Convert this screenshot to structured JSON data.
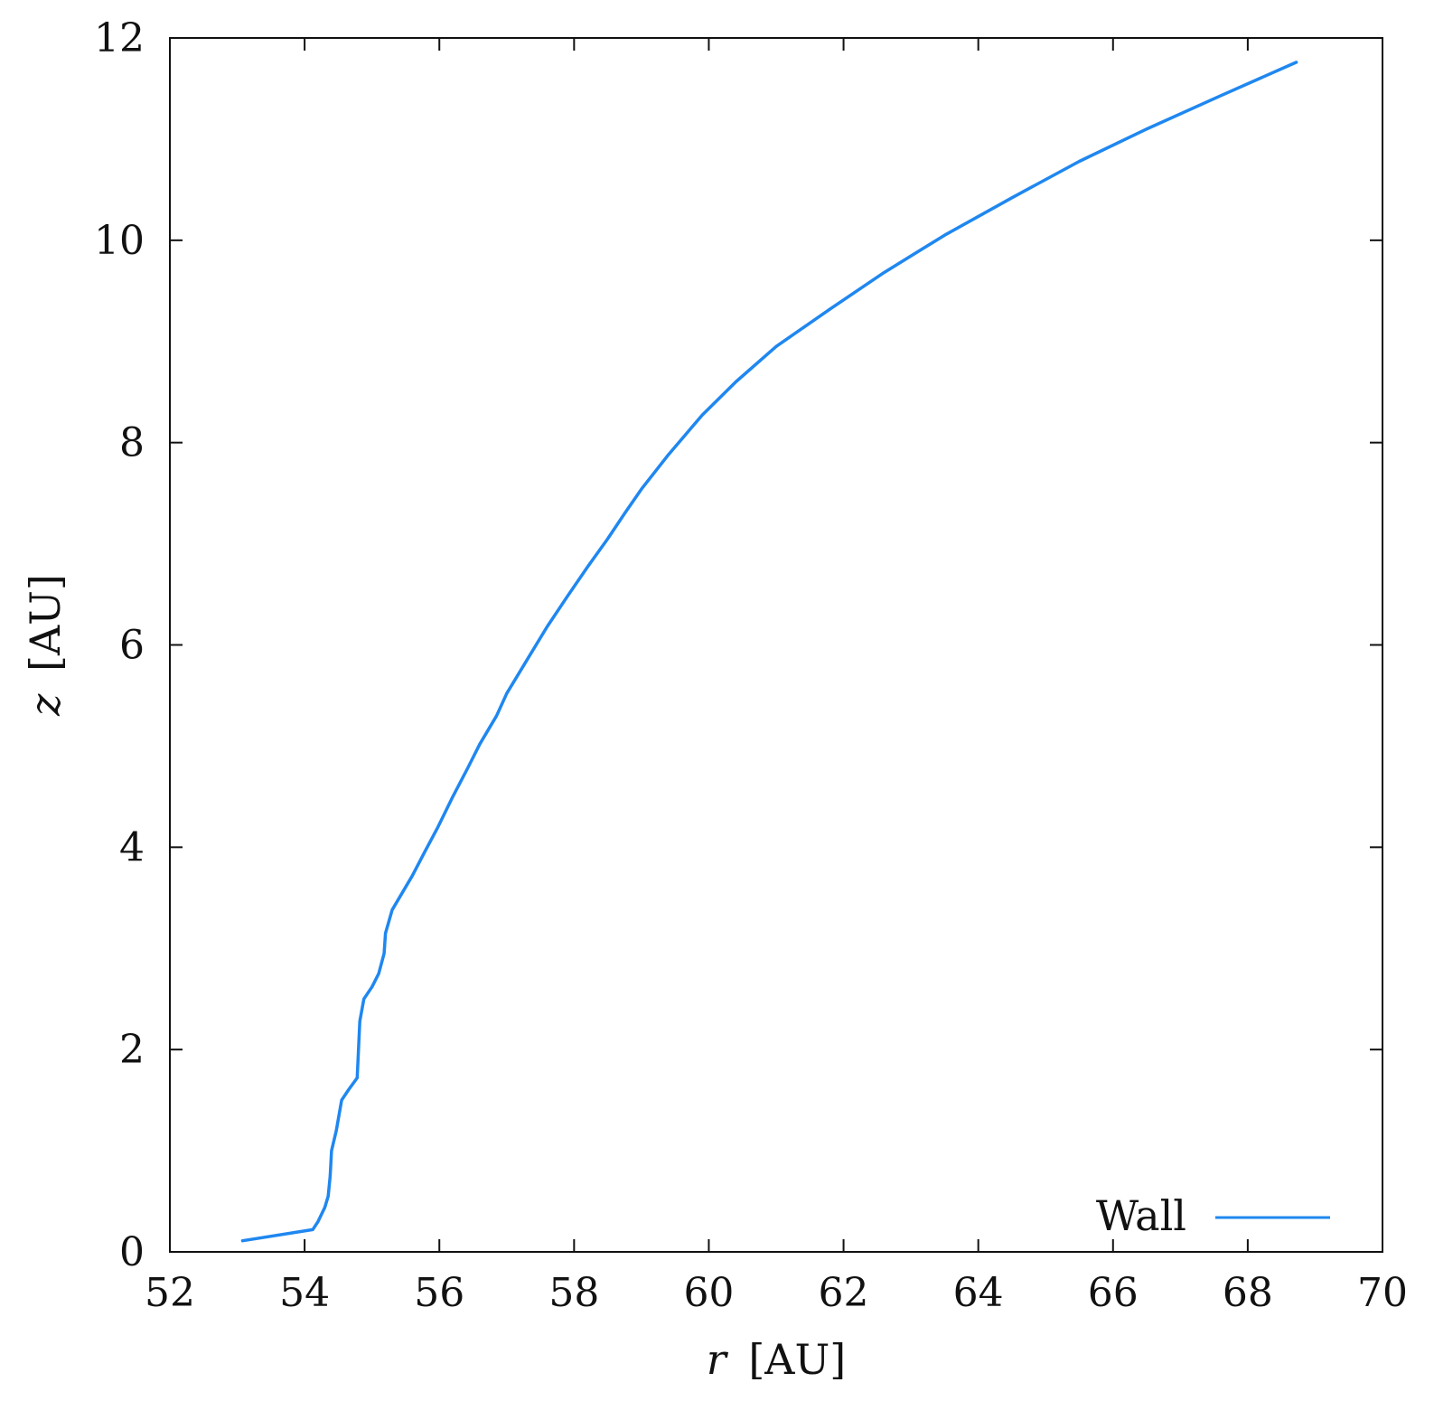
{
  "chart_data": {
    "type": "line",
    "xlabel_var": "r",
    "xlabel_unit": "[AU]",
    "ylabel_var": "z",
    "ylabel_unit": "[AU]",
    "xlim": [
      52,
      70
    ],
    "ylim": [
      0,
      12
    ],
    "xticks": [
      52,
      54,
      56,
      58,
      60,
      62,
      64,
      66,
      68,
      70
    ],
    "yticks": [
      0,
      2,
      4,
      6,
      8,
      10,
      12
    ],
    "grid": false,
    "legend_position": "bottom-right",
    "series": [
      {
        "name": "Wall",
        "color": "#1f87f0",
        "points": [
          [
            53.08,
            0.11
          ],
          [
            54.12,
            0.22
          ],
          [
            54.2,
            0.3
          ],
          [
            54.3,
            0.44
          ],
          [
            54.35,
            0.55
          ],
          [
            54.38,
            0.75
          ],
          [
            54.4,
            1.0
          ],
          [
            54.47,
            1.2
          ],
          [
            54.55,
            1.5
          ],
          [
            54.65,
            1.6
          ],
          [
            54.78,
            1.72
          ],
          [
            54.82,
            2.28
          ],
          [
            54.88,
            2.5
          ],
          [
            55.0,
            2.62
          ],
          [
            55.1,
            2.75
          ],
          [
            55.18,
            2.95
          ],
          [
            55.2,
            3.15
          ],
          [
            55.3,
            3.38
          ],
          [
            55.45,
            3.55
          ],
          [
            55.6,
            3.72
          ],
          [
            55.78,
            3.95
          ],
          [
            55.98,
            4.2
          ],
          [
            56.2,
            4.5
          ],
          [
            56.42,
            4.78
          ],
          [
            56.6,
            5.02
          ],
          [
            56.85,
            5.3
          ],
          [
            57.0,
            5.52
          ],
          [
            57.3,
            5.85
          ],
          [
            57.6,
            6.18
          ],
          [
            57.9,
            6.48
          ],
          [
            58.2,
            6.77
          ],
          [
            58.5,
            7.05
          ],
          [
            58.75,
            7.3
          ],
          [
            59.0,
            7.54
          ],
          [
            59.4,
            7.88
          ],
          [
            59.9,
            8.27
          ],
          [
            60.4,
            8.6
          ],
          [
            61.0,
            8.95
          ],
          [
            61.8,
            9.32
          ],
          [
            62.6,
            9.68
          ],
          [
            63.5,
            10.05
          ],
          [
            64.5,
            10.42
          ],
          [
            65.5,
            10.78
          ],
          [
            66.5,
            11.1
          ],
          [
            67.6,
            11.43
          ],
          [
            68.72,
            11.76
          ]
        ]
      }
    ]
  }
}
